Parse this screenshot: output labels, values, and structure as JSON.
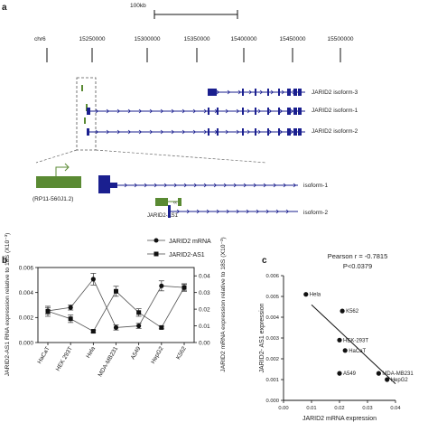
{
  "panel_labels": {
    "a": "a",
    "b": "b",
    "c": "c"
  },
  "panel_a": {
    "scale_bar_label": "100kb",
    "chromosome": "chr6",
    "coordinates": [
      "15250000",
      "15300000",
      "15350000",
      "15400000",
      "15450000",
      "15500000"
    ],
    "isoform_labels": [
      "JARID2 isoform-3",
      "JARID2 isoform-1",
      "JARID2 isoform-2"
    ],
    "zoom": {
      "rp11_label": "(RP11-560J1.2)",
      "isoform1_label": "isoform-1",
      "isoform2_label": "isoform-2",
      "antisense_label": "JARID2-AS1"
    },
    "colors": {
      "gene": "#1a1f8f",
      "antisense": "#5a8a33"
    }
  },
  "chart_data": [
    {
      "type": "line",
      "categories": [
        "HaCaT",
        "HEK 293T",
        "Hela",
        "MDA-MB231",
        "A549",
        "HepG2",
        "K562"
      ],
      "ylabel": "JARID2-AS1 RNA expression relative to 18S (X10⁻³)",
      "y2label": "JARID2 mRNA expression relative to 18S (X10⁻³)",
      "yticks": [
        "0.000",
        "0.002",
        "0.004",
        "0.006"
      ],
      "y2ticks": [
        "0.00",
        "0.01",
        "0.02",
        "0.03",
        "0.04"
      ],
      "ylim": [
        0,
        0.006
      ],
      "y2lim": [
        0,
        0.045
      ],
      "series": [
        {
          "name": "JARID2 mRNA",
          "axis": "right",
          "marker": "circle",
          "values": [
            0.019,
            0.021,
            0.038,
            0.009,
            0.01,
            0.034,
            0.033
          ],
          "errors": [
            0.002,
            0.0015,
            0.0035,
            0.0015,
            0.0015,
            0.003,
            0.002
          ]
        },
        {
          "name": "JARID2-AS1",
          "axis": "left",
          "marker": "square",
          "values": [
            0.0025,
            0.0019,
            0.0009,
            0.0041,
            0.0024,
            0.0012,
            0.0044
          ],
          "errors": [
            0.0004,
            0.0003,
            0.0001,
            0.0004,
            0.0003,
            0.0001,
            0.0003
          ]
        }
      ],
      "legend_position": "top"
    },
    {
      "type": "scatter",
      "annotation_r": "Pearson r = -0.7815",
      "annotation_p": "P<0.0379",
      "xlabel": "JARID2 mRNA expression",
      "ylabel": "JARID2- AS1 expression",
      "xticks": [
        "0.00",
        "0.01",
        "0.02",
        "0.03",
        "0.04"
      ],
      "yticks": [
        "0.000",
        "0.001",
        "0.002",
        "0.003",
        "0.004",
        "0.005",
        "0.006"
      ],
      "xlim": [
        0,
        0.04
      ],
      "ylim": [
        0,
        0.006
      ],
      "points": [
        {
          "label": "Hela",
          "x": 0.008,
          "y": 0.0051
        },
        {
          "label": "K562",
          "x": 0.021,
          "y": 0.0043
        },
        {
          "label": "HEK-293T",
          "x": 0.02,
          "y": 0.0029
        },
        {
          "label": "HaCaT",
          "x": 0.022,
          "y": 0.0024
        },
        {
          "label": "A549",
          "x": 0.02,
          "y": 0.0013
        },
        {
          "label": "MDA-MB231",
          "x": 0.034,
          "y": 0.0013
        },
        {
          "label": "HepG2",
          "x": 0.037,
          "y": 0.001
        }
      ],
      "fit": {
        "x": [
          0.01,
          0.04
        ],
        "y": [
          0.0046,
          0.0008
        ]
      }
    }
  ]
}
